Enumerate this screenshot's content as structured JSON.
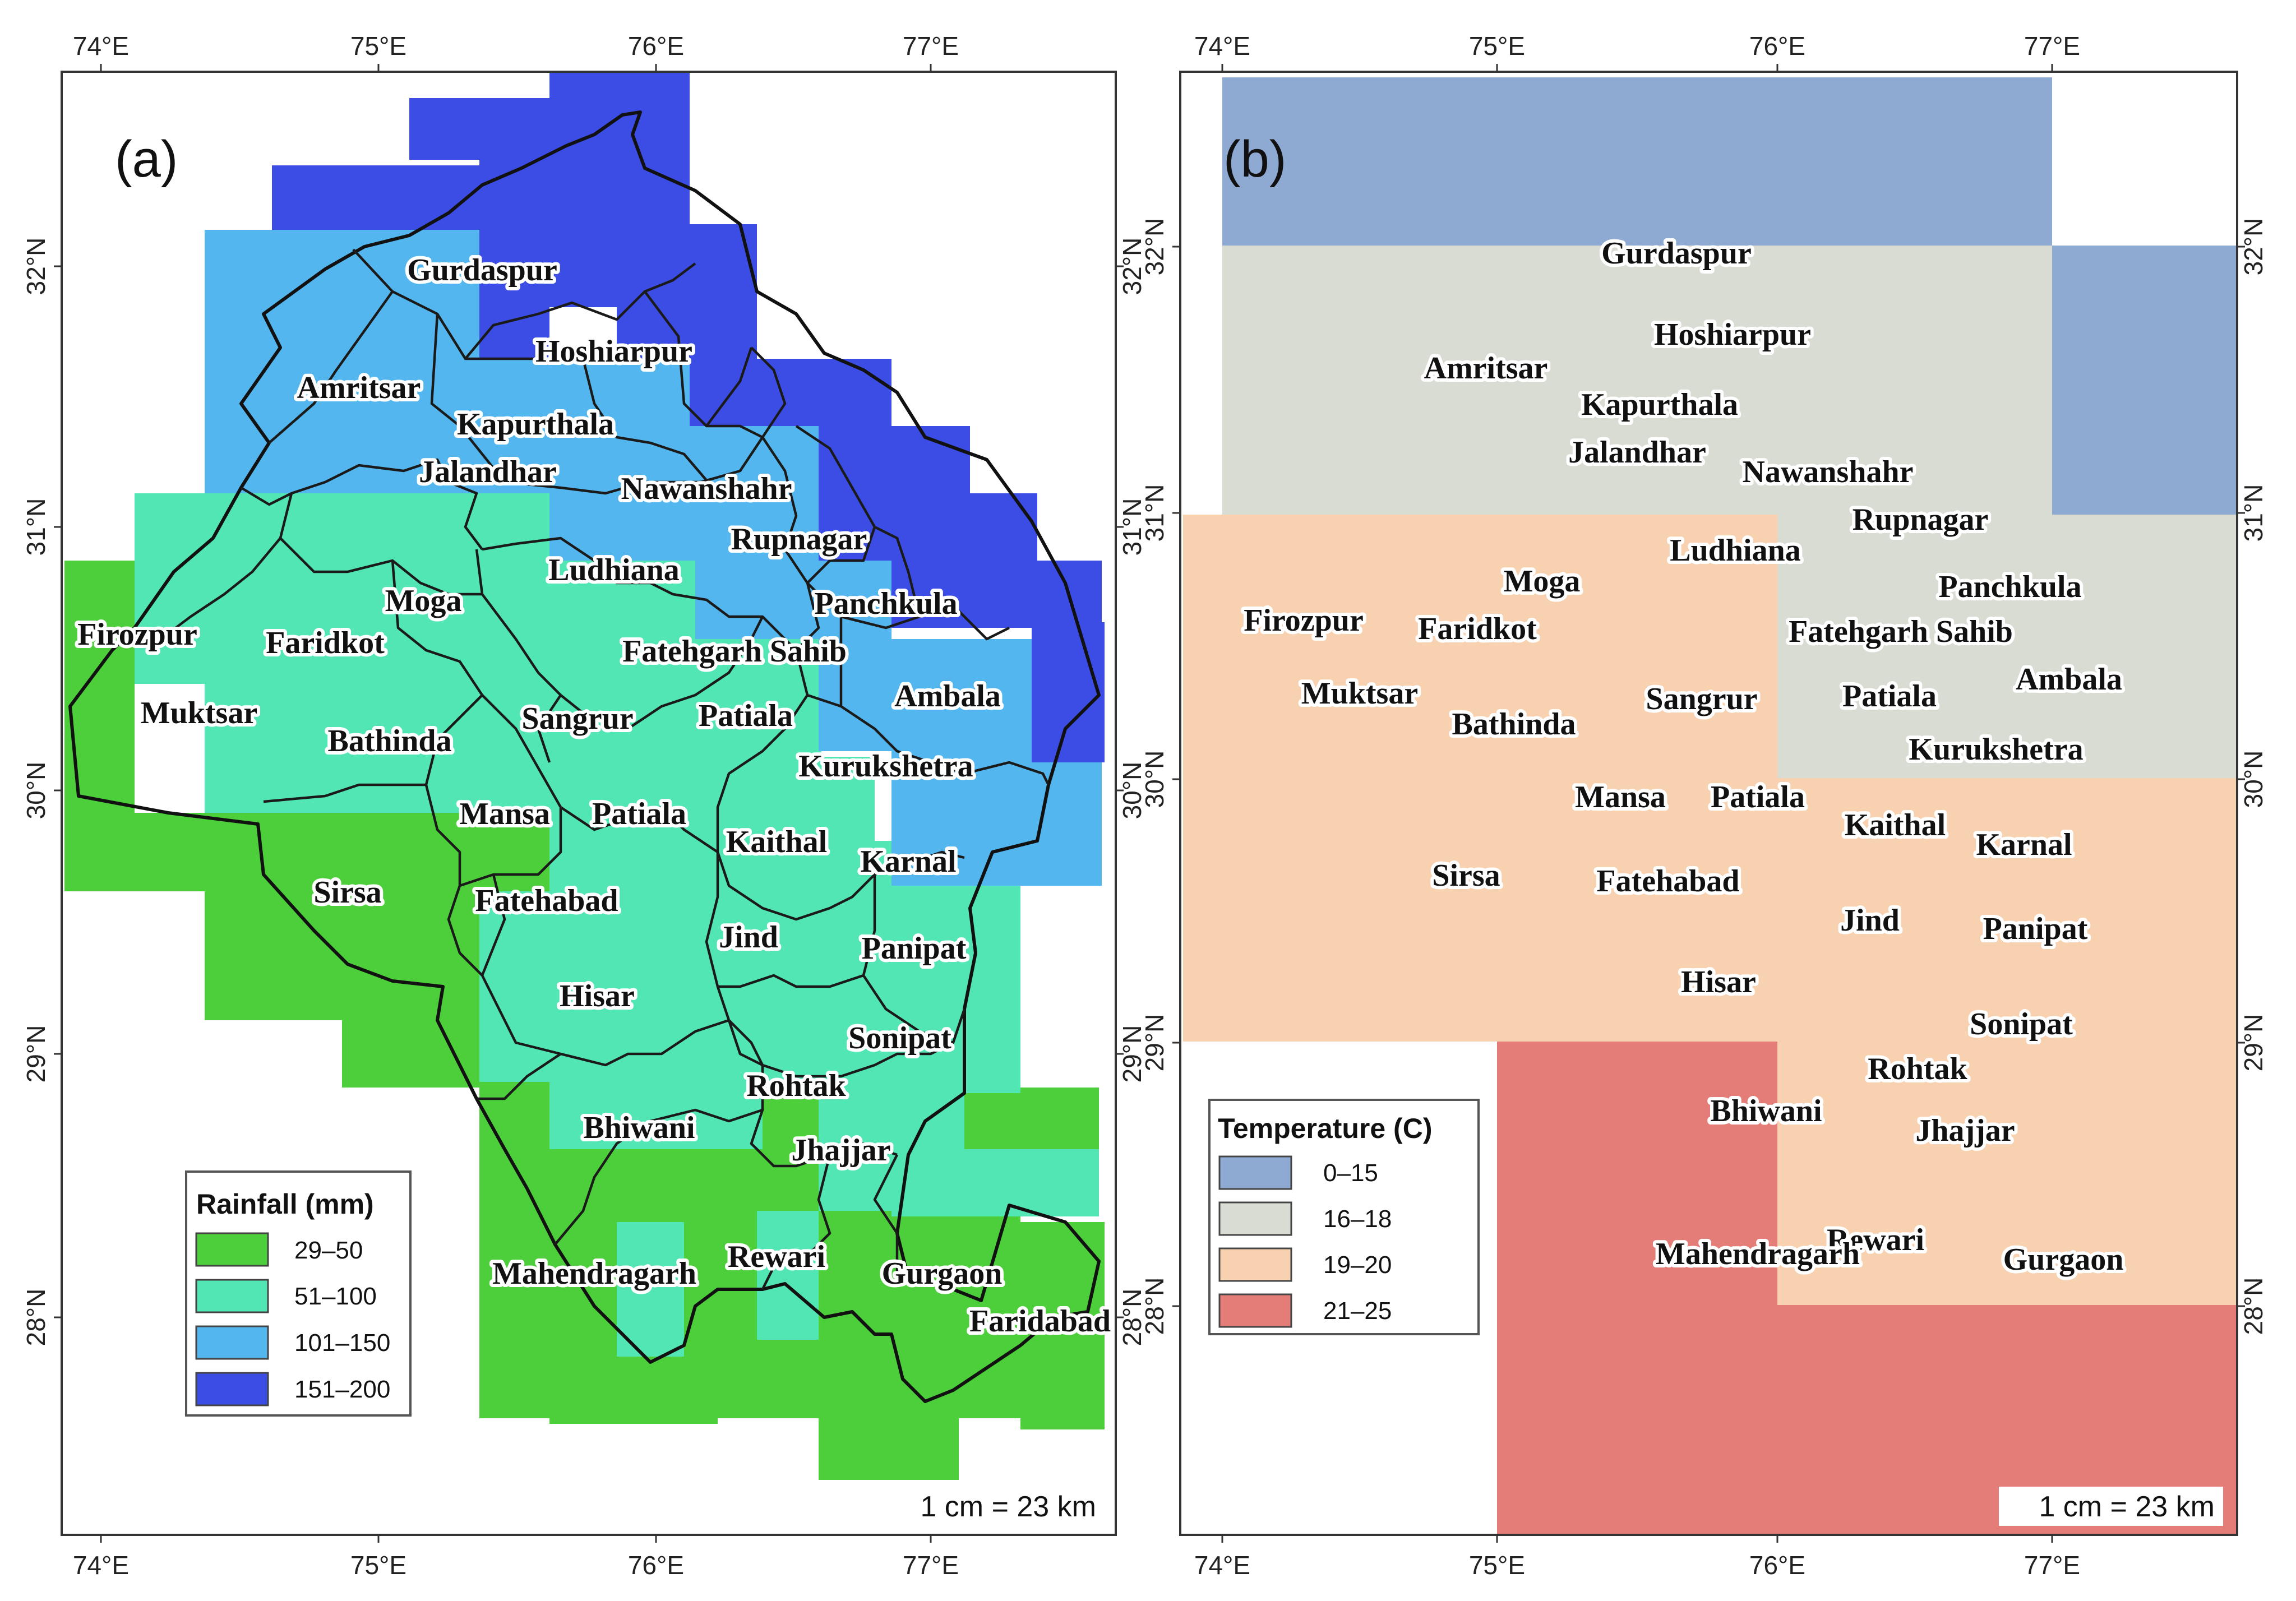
{
  "colors": {
    "rain_29_50": "#4ccf3a",
    "rain_51_100": "#52e6b4",
    "rain_101_150": "#54b6ee",
    "rain_151_200": "#3b4de4",
    "temp_0_15": "#8eaad3",
    "temp_16_18": "#d8dcd3",
    "temp_19_20": "#f8d1b1",
    "temp_21_25": "#e47d77"
  },
  "axes": {
    "lon_labels": [
      "74°E",
      "75°E",
      "76°E",
      "77°E"
    ],
    "lat_labels": [
      "32°N",
      "31°N",
      "30°N",
      "29°N",
      "28°N"
    ]
  },
  "panel_a": {
    "letter": "(a)",
    "legend_title": "Rainfall (mm)",
    "legend": [
      {
        "label": "29–50",
        "color": "#4ccf3a"
      },
      {
        "label": "51–100",
        "color": "#52e6b4"
      },
      {
        "label": "101–150",
        "color": "#54b6ee"
      },
      {
        "label": "151–200",
        "color": "#3b4de4"
      }
    ],
    "scale": "1 cm = 23 km",
    "districts": [
      "Gurdaspur",
      "Hoshiarpur",
      "Amritsar",
      "Kapurthala",
      "Jalandhar",
      "Nawanshahr",
      "Rupnagar",
      "Ludhiana",
      "Moga",
      "Panchkula",
      "Firozpur",
      "Faridkot",
      "Fatehgarh Sahib",
      "Ambala",
      "Muktsar",
      "Sangrur",
      "Patiala",
      "Bathinda",
      "Kurukshetra",
      "Mansa",
      "Patiala",
      "Kaithal",
      "Karnal",
      "Sirsa",
      "Fatehabad",
      "Jind",
      "Panipat",
      "Hisar",
      "Sonipat",
      "Rohtak",
      "Bhiwani",
      "Jhajjar",
      "Rewari",
      "Mahendragarh",
      "Gurgaon",
      "Faridabad"
    ]
  },
  "panel_b": {
    "letter": "(b)",
    "legend_title": "Temperature (C)",
    "legend": [
      {
        "label": "0–15",
        "color": "#8eaad3"
      },
      {
        "label": "16–18",
        "color": "#d8dcd3"
      },
      {
        "label": "19–20",
        "color": "#f8d1b1"
      },
      {
        "label": "21–25",
        "color": "#e47d77"
      }
    ],
    "scale": "1 cm = 23 km",
    "districts": [
      "Gurdaspur",
      "Hoshiarpur",
      "Amritsar",
      "Kapurthala",
      "Jalandhar",
      "Nawanshahr",
      "Rupnagar",
      "Ludhiana",
      "Moga",
      "Panchkula",
      "Firozpur",
      "Faridkot",
      "Fatehgarh Sahib",
      "Ambala",
      "Muktsar",
      "Sangrur",
      "Patiala",
      "Bathinda",
      "Kurukshetra",
      "Mansa",
      "Patiala",
      "Kaithal",
      "Karnal",
      "Sirsa",
      "Fatehabad",
      "Jind",
      "Panipat",
      "Hisar",
      "Sonipat",
      "Rohtak",
      "Bhiwani",
      "Jhajjar",
      "Rewari",
      "Mahendragarh",
      "Gurgaon"
    ]
  }
}
